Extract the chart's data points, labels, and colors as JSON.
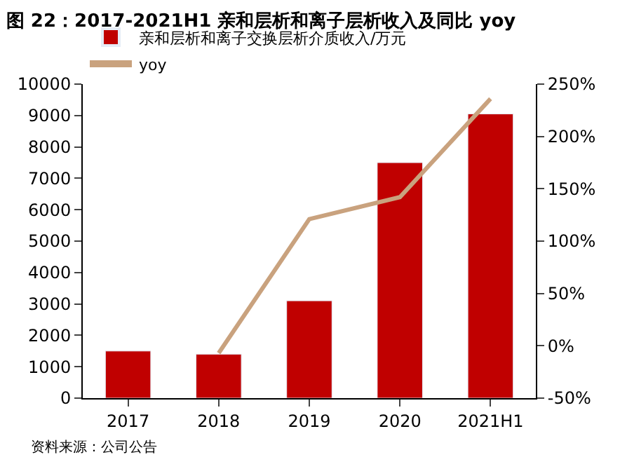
{
  "chart_data": {
    "type": "bar",
    "title": "图 22：2017-2021H1 亲和层析和离子层析收入及同比 yoy",
    "categories": [
      "2017",
      "2018",
      "2019",
      "2020",
      "2021H1"
    ],
    "series": [
      {
        "name": "亲和层析和离子交换层析介质收入/万元",
        "color": "#c00000",
        "values": [
          1500,
          1400,
          3100,
          7500,
          9050
        ]
      },
      {
        "name": "yoy",
        "type": "line",
        "axis": "y2",
        "color": "#c9a27e",
        "values": [
          null,
          -7,
          121,
          142,
          236
        ]
      }
    ],
    "ylim": [
      0,
      10000
    ],
    "yticks": [
      0,
      1000,
      2000,
      3000,
      4000,
      5000,
      6000,
      7000,
      8000,
      9000,
      10000
    ],
    "y2lim": [
      -50,
      250
    ],
    "y2ticks": [
      {
        "value": -50,
        "label": "-50%"
      },
      {
        "value": 0,
        "label": "0%"
      },
      {
        "value": 50,
        "label": "50%"
      },
      {
        "value": 100,
        "label": "100%"
      },
      {
        "value": 150,
        "label": "150%"
      },
      {
        "value": 200,
        "label": "200%"
      },
      {
        "value": 250,
        "label": "250%"
      }
    ],
    "grid": false,
    "legend": "top left",
    "marker": "none",
    "annotations": [
      "资料来源：公司公告"
    ]
  }
}
